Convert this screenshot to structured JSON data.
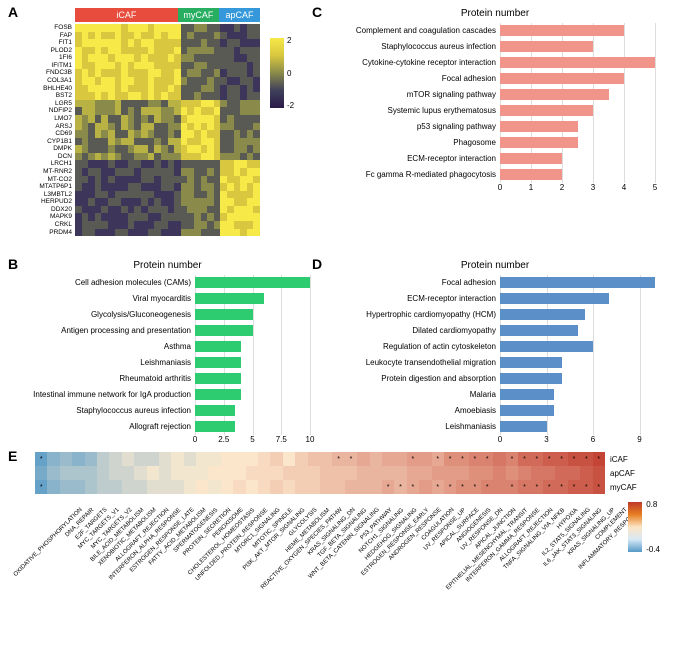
{
  "panelA": {
    "label": "A",
    "groups": [
      {
        "name": "iCAF",
        "color": "#e74c3c"
      },
      {
        "name": "myCAF",
        "color": "#27ae60"
      },
      {
        "name": "apCAF",
        "color": "#3498db"
      }
    ],
    "genes": [
      "FOSB",
      "FAP",
      "FIT1",
      "PLOD2",
      "1FI6",
      "IFITM1",
      "FNDC3B",
      "COL3A1",
      "BHLHE40",
      "BST2",
      "LGR5",
      "NDFIP2",
      "LMO7",
      "ARSJ",
      "CD69",
      "CYP1B1",
      "DMPK",
      "DCN",
      "LRCH1",
      "MT-RNR2",
      "MT-CO2",
      "MTATP6P1",
      "L3MBTL2",
      "HERPUD2",
      "DDX20",
      "MAPK9",
      "CRKL",
      "PRDM4"
    ],
    "colorbar": {
      "ticks": [
        "2",
        "0",
        "-2"
      ],
      "gradient": [
        "#f7e948",
        "#2a1a4a"
      ]
    },
    "cell_palette": [
      "#2a1a4a",
      "#3d355a",
      "#5a5a55",
      "#8a8a4a",
      "#b8b245",
      "#d8c73f",
      "#f7e948"
    ],
    "columns": 28,
    "rows": 28
  },
  "panelB": {
    "label": "B",
    "title": "Protein number",
    "color": "#2ecc71",
    "xmax": 10,
    "xticks": [
      0.0,
      2.5,
      5.0,
      7.5,
      10.0
    ],
    "items": [
      {
        "label": "Cell adhesion molecules (CAMs)",
        "value": 10
      },
      {
        "label": "Viral myocarditis",
        "value": 6
      },
      {
        "label": "Glycolysis/Gluconeogenesis",
        "value": 5
      },
      {
        "label": "Antigen processing and presentation",
        "value": 5
      },
      {
        "label": "Asthma",
        "value": 4
      },
      {
        "label": "Leishmaniasis",
        "value": 4
      },
      {
        "label": "Rheumatoid arthritis",
        "value": 4
      },
      {
        "label": "Intestinal immune network for IgA production",
        "value": 4
      },
      {
        "label": "Staphylococcus aureus infection",
        "value": 3.5
      },
      {
        "label": "Allograft rejection",
        "value": 3.5
      }
    ]
  },
  "panelC": {
    "label": "C",
    "title": "Protein number",
    "color": "#f1948a",
    "xmax": 5,
    "xticks": [
      0,
      1,
      2,
      3,
      4,
      5
    ],
    "items": [
      {
        "label": "Complement and coagulation cascades",
        "value": 4
      },
      {
        "label": "Staphylococcus aureus infection",
        "value": 3
      },
      {
        "label": "Cytokine-cytokine receptor interaction",
        "value": 5
      },
      {
        "label": "Focal adhesion",
        "value": 4
      },
      {
        "label": "mTOR signaling pathway",
        "value": 3.5
      },
      {
        "label": "Systemic lupus erythematosus",
        "value": 3
      },
      {
        "label": "p53 signaling pathway",
        "value": 2.5
      },
      {
        "label": "Phagosome",
        "value": 2.5
      },
      {
        "label": "ECM-receptor interaction",
        "value": 2
      },
      {
        "label": "Fc gamma R-mediated phagocytosis",
        "value": 2
      }
    ]
  },
  "panelD": {
    "label": "D",
    "title": "Protein number",
    "color": "#5a8fc7",
    "xmax": 10,
    "xticks": [
      0,
      3,
      6,
      9
    ],
    "items": [
      {
        "label": "Focal adhesion",
        "value": 10
      },
      {
        "label": "ECM-receptor interaction",
        "value": 7
      },
      {
        "label": "Hypertrophic cardiomyopathy (HCM)",
        "value": 5.5
      },
      {
        "label": "Dilated cardiomyopathy",
        "value": 5
      },
      {
        "label": "Regulation of actin cytoskeleton",
        "value": 6
      },
      {
        "label": "Leukocyte transendothelial migration",
        "value": 4
      },
      {
        "label": "Protein digestion and absorption",
        "value": 4
      },
      {
        "label": "Malaria",
        "value": 3.5
      },
      {
        "label": "Amoebiasis",
        "value": 3.5
      },
      {
        "label": "Leishmaniasis",
        "value": 3
      }
    ]
  },
  "panelE": {
    "label": "E",
    "row_labels": [
      "iCAF",
      "apCAF",
      "myCAF"
    ],
    "colorbar": {
      "ticks": [
        "0.8",
        "-0.4"
      ]
    },
    "pathways": [
      "OXIDATIVE_PHOSPHORYLATION",
      "DNA_REPAIR",
      "E2F_TARGETS",
      "MYC_TARGETS_V1",
      "MYC_TARGETS_V2",
      "BILE_ACID_METABOLISM",
      "XENOBIOTIC_METABOLISM",
      "ALLOGRAFT_REJECTION",
      "INTERFERON_ALPHA_RESPONSE",
      "ESTROGEN_RESPONSE_LATE",
      "FATTY_ACID_METABOLISM",
      "SPERMATOGENESIS",
      "PROTEIN_SECRETION",
      "PEROXISOME",
      "CHOLESTEROL_HOMEOSTASIS",
      "UNFOLDED_PROTEIN_RESPONSE",
      "MTORC1_SIGNALING",
      "MITOTIC_SPINDLE",
      "PI3K_AKT_MTOR_SIGNALING",
      "GLYCOLYSIS",
      "HEME_METABOLISM",
      "REACTIVE_OXYGEN_SPECIES_PATHW",
      "KRAS_SIGNALING_DN",
      "TGF_BETA_SIGNALING",
      "WNT_BETA_CATENIN_SIGNALING",
      "P53_PATHWAY",
      "NOTCH1_SIGNALING",
      "HEDGEHOG_SIGNALING",
      "ESTROGEN_RESPONSE_EARLY",
      "ANDROGEN_RESPONSE",
      "COAGULATION",
      "UV_RESPONSE_UP",
      "APICAL_SURFACE",
      "ANGIOGENESIS",
      "UV_RESPONSE_DN",
      "APICAL_JUNCTION",
      "EPITHELIAL_MESENCHYMAL_TRANSIT",
      "INTERFERON_GAMMA_RESPONSE",
      "ALLOGRAFT_REJECTION",
      "TNFA_SIGNALING_VIA_NFKB",
      "HYPOXIA",
      "IL2_STAT5_SIGNALING",
      "IL6_JAK_STAT3_SIGNALING",
      "KRAS_SIGNALING_UP",
      "COMPLEMENT",
      "INFLAMMATORY_RESPONSE"
    ],
    "values": [
      [
        -0.35,
        -0.25,
        -0.2,
        -0.25,
        -0.2,
        -0.1,
        -0.05,
        0.0,
        -0.05,
        -0.05,
        0.0,
        0.05,
        0.0,
        0.05,
        0.05,
        0.1,
        0.1,
        0.1,
        0.15,
        0.2,
        0.1,
        0.2,
        0.25,
        0.25,
        0.3,
        0.3,
        0.35,
        0.3,
        0.35,
        0.35,
        0.4,
        0.4,
        0.35,
        0.45,
        0.45,
        0.5,
        0.5,
        0.55,
        0.5,
        0.6,
        0.6,
        0.65,
        0.65,
        0.7,
        0.7,
        0.75
      ],
      [
        -0.3,
        -0.2,
        -0.15,
        -0.15,
        -0.15,
        -0.1,
        -0.05,
        -0.05,
        0.0,
        0.05,
        0.0,
        0.05,
        0.05,
        0.05,
        0.1,
        0.1,
        0.1,
        0.15,
        0.15,
        0.15,
        0.2,
        0.2,
        0.2,
        0.25,
        0.25,
        0.25,
        0.3,
        0.3,
        0.3,
        0.3,
        0.35,
        0.35,
        0.4,
        0.4,
        0.4,
        0.45,
        0.45,
        0.5,
        0.45,
        0.5,
        0.55,
        0.55,
        0.6,
        0.6,
        0.65,
        0.7
      ],
      [
        -0.35,
        -0.25,
        -0.2,
        -0.2,
        -0.15,
        -0.1,
        -0.1,
        -0.05,
        -0.05,
        0.0,
        0.0,
        0.0,
        0.05,
        0.1,
        0.05,
        0.1,
        0.15,
        0.1,
        0.15,
        0.2,
        0.15,
        0.2,
        0.2,
        0.25,
        0.25,
        0.3,
        0.3,
        0.3,
        0.35,
        0.3,
        0.35,
        0.4,
        0.35,
        0.4,
        0.45,
        0.45,
        0.5,
        0.5,
        0.5,
        0.55,
        0.55,
        0.6,
        0.6,
        0.65,
        0.65,
        0.7
      ]
    ],
    "sig": [
      [
        1,
        0,
        0,
        0,
        0,
        0,
        0,
        0,
        0,
        0,
        0,
        0,
        0,
        0,
        0,
        0,
        0,
        0,
        0,
        0,
        0,
        0,
        0,
        0,
        1,
        1,
        0,
        0,
        0,
        0,
        1,
        0,
        1,
        1,
        1,
        1,
        1,
        0,
        1,
        1,
        1,
        1,
        1,
        1,
        1,
        1
      ],
      [
        0,
        0,
        0,
        0,
        0,
        0,
        0,
        0,
        0,
        0,
        0,
        0,
        0,
        0,
        0,
        0,
        0,
        0,
        0,
        0,
        0,
        0,
        0,
        0,
        0,
        0,
        0,
        0,
        0,
        0,
        0,
        0,
        0,
        0,
        0,
        0,
        0,
        0,
        0,
        0,
        0,
        0,
        0,
        0,
        0,
        0
      ],
      [
        1,
        0,
        0,
        0,
        0,
        0,
        0,
        0,
        0,
        0,
        0,
        0,
        0,
        0,
        0,
        0,
        0,
        0,
        0,
        0,
        0,
        0,
        0,
        0,
        0,
        0,
        0,
        0,
        1,
        1,
        1,
        0,
        1,
        1,
        1,
        1,
        1,
        0,
        1,
        1,
        1,
        1,
        1,
        1,
        1,
        1
      ]
    ]
  }
}
